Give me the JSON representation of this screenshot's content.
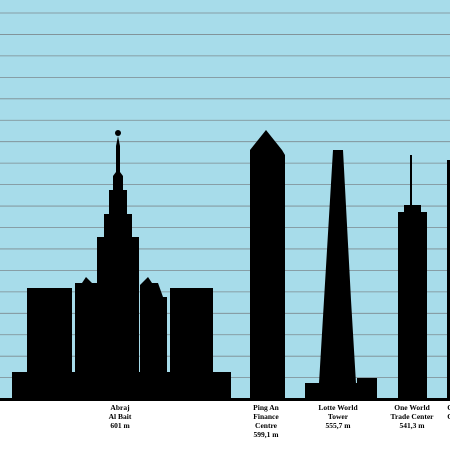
{
  "buildings": [
    {
      "name_lines": [
        "Abraj",
        "Al Bait"
      ],
      "height": "601 m"
    },
    {
      "name_lines": [
        "Ping An",
        "Finance",
        "Centre"
      ],
      "height": "599,1 m"
    },
    {
      "name_lines": [
        "Lotte World",
        "Tower"
      ],
      "height": "555,7 m"
    },
    {
      "name_lines": [
        "One World",
        "Trade Center"
      ],
      "height": "541,3 m"
    },
    {
      "name_lines": [
        "C",
        "C"
      ]
    }
  ]
}
